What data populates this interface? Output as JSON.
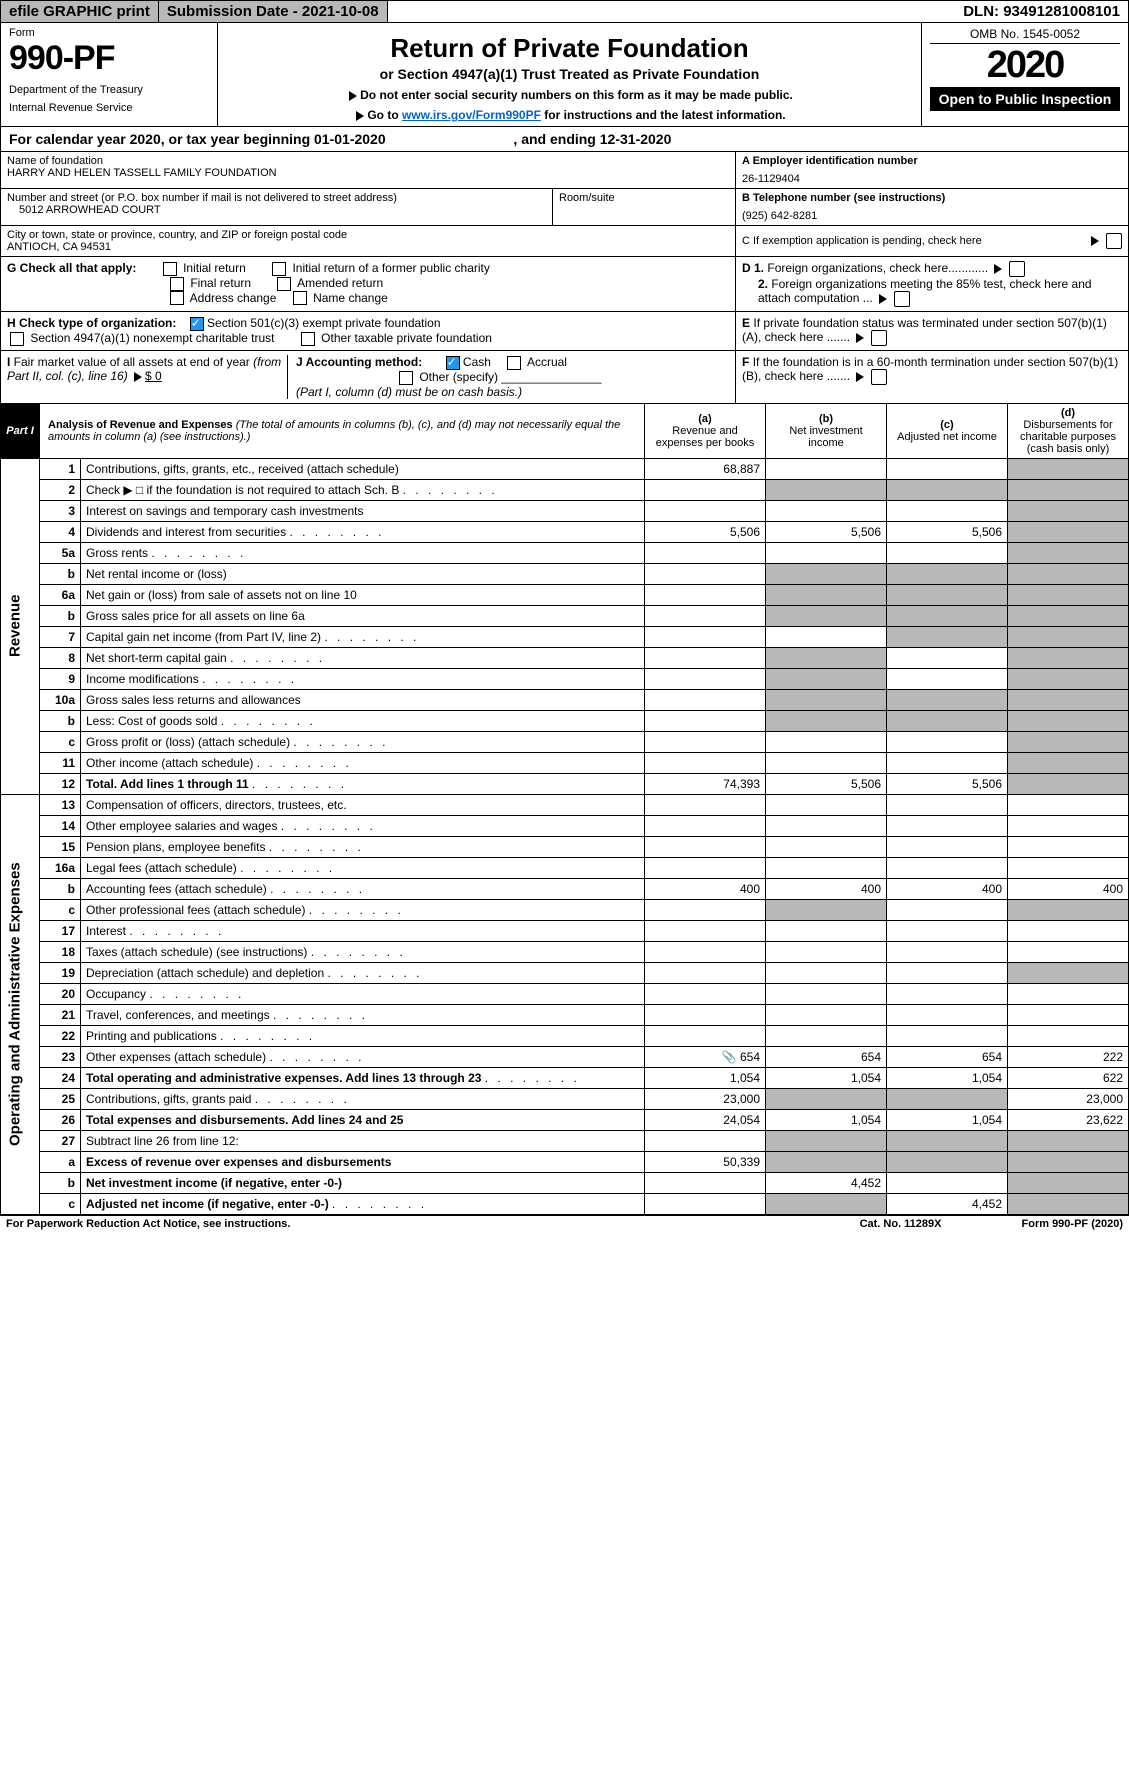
{
  "top": {
    "efile": "efile GRAPHIC print",
    "sub": "Submission Date - 2021-10-08",
    "dln": "DLN: 93491281008101"
  },
  "header": {
    "form_word": "Form",
    "form_num": "990-PF",
    "dept": "Department of the Treasury",
    "irs": "Internal Revenue Service",
    "title": "Return of Private Foundation",
    "subtitle": "or Section 4947(a)(1) Trust Treated as Private Foundation",
    "notice1": "Do not enter social security numbers on this form as it may be made public.",
    "notice2_pre": "Go to ",
    "notice2_link": "www.irs.gov/Form990PF",
    "notice2_post": " for instructions and the latest information.",
    "omb": "OMB No. 1545-0052",
    "year": "2020",
    "open": "Open to Public Inspection"
  },
  "cal": {
    "pre": "For calendar year 2020, or tax year beginning ",
    "begin": "01-01-2020",
    "mid": ", and ending ",
    "end": "12-31-2020"
  },
  "ident": {
    "name_lbl": "Name of foundation",
    "name": "HARRY AND HELEN TASSELL FAMILY FOUNDATION",
    "addr_lbl": "Number and street (or P.O. box number if mail is not delivered to street address)",
    "addr": "5012 ARROWHEAD COURT",
    "room_lbl": "Room/suite",
    "city_lbl": "City or town, state or province, country, and ZIP or foreign postal code",
    "city": "ANTIOCH, CA  94531",
    "ein_lbl": "A Employer identification number",
    "ein": "26-1129404",
    "tel_lbl": "B Telephone number (see instructions)",
    "tel": "(925) 642-8281",
    "c": "C  If exemption application is pending, check here"
  },
  "g": {
    "lbl": "G Check all that apply:",
    "opts": [
      "Initial return",
      "Initial return of a former public charity",
      "Final return",
      "Amended return",
      "Address change",
      "Name change"
    ],
    "d1": "D 1. Foreign organizations, check here............",
    "d2": "2. Foreign organizations meeting the 85% test, check here and attach computation ...",
    "e": "E  If private foundation status was terminated under section 507(b)(1)(A), check here .......",
    "f": "F  If the foundation is in a 60-month termination under section 507(b)(1)(B), check here .......",
    "h": "H Check type of organization:",
    "h1": "Section 501(c)(3) exempt private foundation",
    "h2": "Section 4947(a)(1) nonexempt charitable trust",
    "h3": "Other taxable private foundation",
    "i": "I Fair market value of all assets at end of year (from Part II, col. (c), line 16)",
    "i_val": "$ 0",
    "j": "J Accounting method:",
    "j1": "Cash",
    "j2": "Accrual",
    "j3": "Other (specify)",
    "j_note": "(Part I, column (d) must be on cash basis.)"
  },
  "part": {
    "label": "Part I",
    "title": "Analysis of Revenue and Expenses",
    "sub": "(The total of amounts in columns (b), (c), and (d) may not necessarily equal the amounts in column (a) (see instructions).)",
    "col_a": "(a)",
    "col_a2": "Revenue and expenses per books",
    "col_b": "(b)",
    "col_b2": "Net investment income",
    "col_c": "(c)",
    "col_c2": "Adjusted net income",
    "col_d": "(d)",
    "col_d2": "Disbursements for charitable purposes (cash basis only)"
  },
  "sec": {
    "rev": "Revenue",
    "exp": "Operating and Administrative Expenses"
  },
  "rows": [
    {
      "n": "1",
      "d": "Contributions, gifts, grants, etc., received (attach schedule)",
      "a": "68,887"
    },
    {
      "n": "2",
      "d": "Check ▶ □ if the foundation is not required to attach Sch. B",
      "dots": 1
    },
    {
      "n": "3",
      "d": "Interest on savings and temporary cash investments"
    },
    {
      "n": "4",
      "d": "Dividends and interest from securities",
      "a": "5,506",
      "b": "5,506",
      "c": "5,506",
      "dots": 1
    },
    {
      "n": "5a",
      "d": "Gross rents",
      "dots": 1
    },
    {
      "n": "b",
      "d": "Net rental income or (loss)"
    },
    {
      "n": "6a",
      "d": "Net gain or (loss) from sale of assets not on line 10"
    },
    {
      "n": "b",
      "d": "Gross sales price for all assets on line 6a"
    },
    {
      "n": "7",
      "d": "Capital gain net income (from Part IV, line 2)",
      "dots": 1
    },
    {
      "n": "8",
      "d": "Net short-term capital gain",
      "dots": 1
    },
    {
      "n": "9",
      "d": "Income modifications",
      "dots": 1
    },
    {
      "n": "10a",
      "d": "Gross sales less returns and allowances"
    },
    {
      "n": "b",
      "d": "Less: Cost of goods sold",
      "dots": 1
    },
    {
      "n": "c",
      "d": "Gross profit or (loss) (attach schedule)",
      "dots": 1
    },
    {
      "n": "11",
      "d": "Other income (attach schedule)",
      "dots": 1
    },
    {
      "n": "12",
      "d": "Total. Add lines 1 through 11",
      "a": "74,393",
      "b": "5,506",
      "c": "5,506",
      "bold": 1,
      "dots": 1
    }
  ],
  "erows": [
    {
      "n": "13",
      "d": "Compensation of officers, directors, trustees, etc."
    },
    {
      "n": "14",
      "d": "Other employee salaries and wages",
      "dots": 1
    },
    {
      "n": "15",
      "d": "Pension plans, employee benefits",
      "dots": 1
    },
    {
      "n": "16a",
      "d": "Legal fees (attach schedule)",
      "dots": 1
    },
    {
      "n": "b",
      "d": "Accounting fees (attach schedule)",
      "a": "400",
      "b": "400",
      "c": "400",
      "dd": "400",
      "dots": 1
    },
    {
      "n": "c",
      "d": "Other professional fees (attach schedule)",
      "dots": 1
    },
    {
      "n": "17",
      "d": "Interest",
      "dots": 1
    },
    {
      "n": "18",
      "d": "Taxes (attach schedule) (see instructions)",
      "dots": 1
    },
    {
      "n": "19",
      "d": "Depreciation (attach schedule) and depletion",
      "dots": 1
    },
    {
      "n": "20",
      "d": "Occupancy",
      "dots": 1
    },
    {
      "n": "21",
      "d": "Travel, conferences, and meetings",
      "dots": 1
    },
    {
      "n": "22",
      "d": "Printing and publications",
      "dots": 1
    },
    {
      "n": "23",
      "d": "Other expenses (attach schedule)",
      "a": "654",
      "b": "654",
      "c": "654",
      "dd": "222",
      "icon": 1,
      "dots": 1
    },
    {
      "n": "24",
      "d": "Total operating and administrative expenses. Add lines 13 through 23",
      "a": "1,054",
      "b": "1,054",
      "c": "1,054",
      "dd": "622",
      "bold": 1,
      "dots": 1
    },
    {
      "n": "25",
      "d": "Contributions, gifts, grants paid",
      "a": "23,000",
      "dd": "23,000",
      "dots": 1
    },
    {
      "n": "26",
      "d": "Total expenses and disbursements. Add lines 24 and 25",
      "a": "24,054",
      "b": "1,054",
      "c": "1,054",
      "dd": "23,622",
      "bold": 1
    },
    {
      "n": "27",
      "d": "Subtract line 26 from line 12:"
    },
    {
      "n": "a",
      "d": "Excess of revenue over expenses and disbursements",
      "a": "50,339",
      "bold": 1
    },
    {
      "n": "b",
      "d": "Net investment income (if negative, enter -0-)",
      "b": "4,452",
      "bold": 1
    },
    {
      "n": "c",
      "d": "Adjusted net income (if negative, enter -0-)",
      "c": "4,452",
      "bold": 1,
      "dots": 1
    }
  ],
  "footer": {
    "l": "For Paperwork Reduction Act Notice, see instructions.",
    "m": "Cat. No. 11289X",
    "r": "Form 990-PF (2020)"
  }
}
